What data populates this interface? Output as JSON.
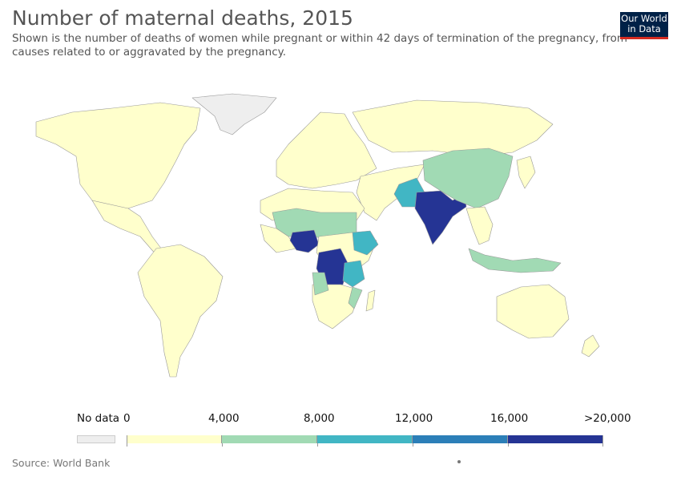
{
  "title": "Number of maternal deaths, 2015",
  "subtitle": "Shown is the number of deaths of women while pregnant or within 42 days of termination of the pregnancy, from causes related to or aggravated by the pregnancy.",
  "logo": {
    "line1": "Our World",
    "line2": "in Data",
    "bg": "#002147",
    "accent": "#d42b21"
  },
  "source": "Source: World Bank",
  "legend": {
    "no_data_label": "No data",
    "no_data_color": "#eeeeee",
    "bins": [
      {
        "label": "0",
        "color": "#ffffcc"
      },
      {
        "label": "4,000",
        "color": "#a1dab4"
      },
      {
        "label": "8,000",
        "color": "#41b6c4"
      },
      {
        "label": "12,000",
        "color": "#2c7fb8"
      },
      {
        "label": "16,000",
        "color": "#253494"
      },
      {
        "label": ">20,000"
      }
    ]
  },
  "highlighted_countries": [
    {
      "name": "Nigeria",
      "bin": ">20,000",
      "color": "#253494"
    },
    {
      "name": "India",
      "bin": ">20,000",
      "color": "#253494"
    },
    {
      "name": "DR Congo",
      "bin": ">20,000",
      "color": "#253494"
    },
    {
      "name": "Ethiopia",
      "bin": "8,000-12,000",
      "color": "#41b6c4"
    },
    {
      "name": "Pakistan",
      "bin": "8,000-12,000",
      "color": "#41b6c4"
    },
    {
      "name": "Tanzania",
      "bin": "8,000-12,000",
      "color": "#41b6c4"
    },
    {
      "name": "China",
      "bin": "4,000-8,000",
      "color": "#a1dab4"
    },
    {
      "name": "Indonesia",
      "bin": "4,000-8,000",
      "color": "#a1dab4"
    },
    {
      "name": "Afghanistan",
      "bin": "4,000-8,000",
      "color": "#a1dab4"
    },
    {
      "name": "Sudan",
      "bin": "4,000-8,000",
      "color": "#a1dab4"
    },
    {
      "name": "Niger",
      "bin": "4,000-8,000",
      "color": "#a1dab4"
    }
  ]
}
